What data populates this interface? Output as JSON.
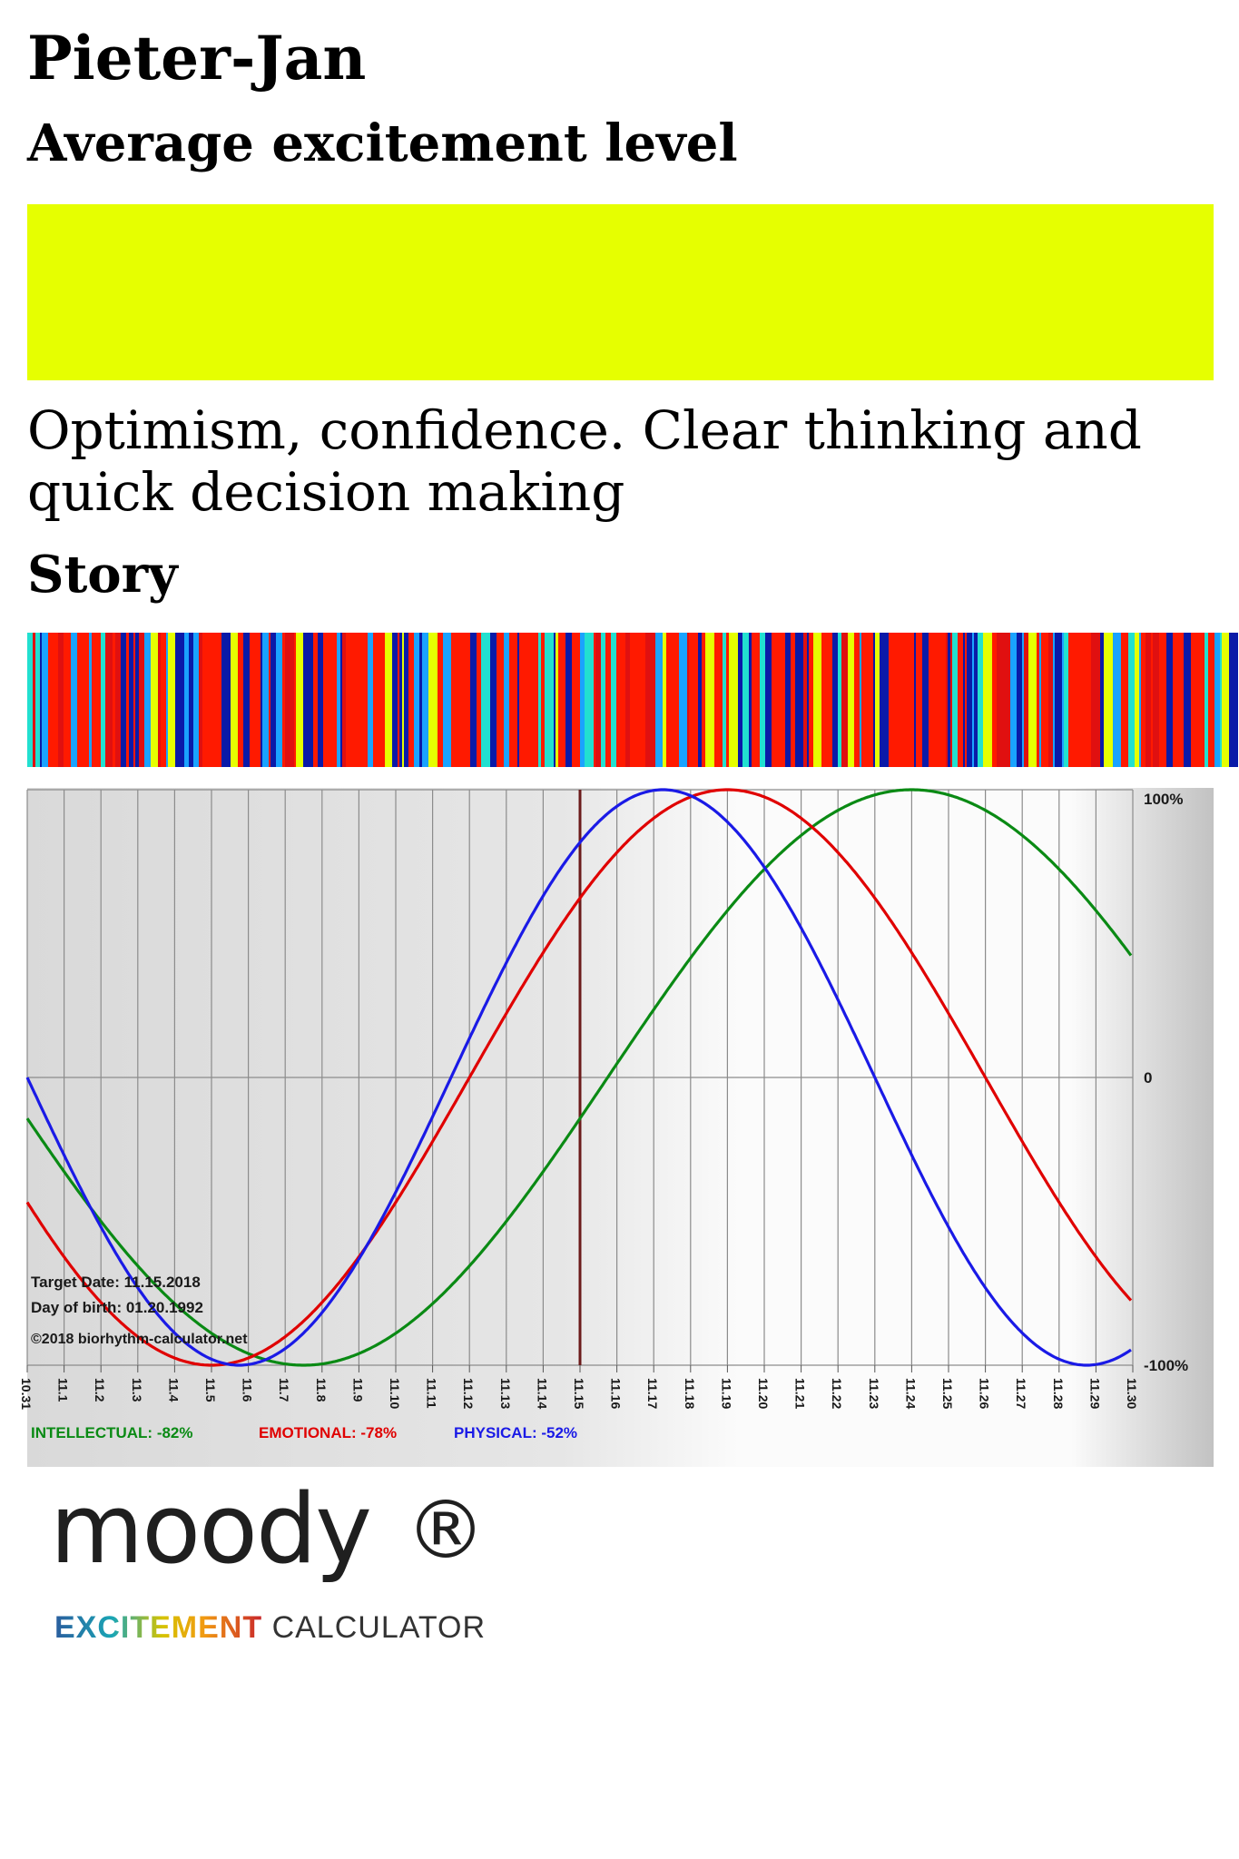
{
  "profile": {
    "name": "Pieter-Jan",
    "level_title": "Average excitement level",
    "level_color": "#e6ff00",
    "description": "Optimism, confidence. Clear thinking and quick decision making",
    "story_title": "Story",
    "story_palette": [
      "#ff1a00",
      "#ff1a00",
      "#e01010",
      "#0a1aa8",
      "#1aa3ff",
      "#22e0d0",
      "#e6ff00",
      "#ff1a00",
      "#0a1aa8",
      "#ff1a00"
    ]
  },
  "chart_data": {
    "type": "line",
    "x": [
      "10.31",
      "11.1",
      "11.2",
      "11.3",
      "11.4",
      "11.5",
      "11.6",
      "11.7",
      "11.8",
      "11.9",
      "11.10",
      "11.11",
      "11.12",
      "11.13",
      "11.14",
      "11.15",
      "11.16",
      "11.17",
      "11.18",
      "11.19",
      "11.20",
      "11.21",
      "11.22",
      "11.23",
      "11.24",
      "11.25",
      "11.26",
      "11.27",
      "11.28",
      "11.29",
      "11.30"
    ],
    "y_ticks": [
      "100%",
      "0",
      "-100%"
    ],
    "ylim": [
      -100,
      100
    ],
    "target_index": 15,
    "grid": true,
    "series": [
      {
        "name": "INTELLECTUAL",
        "color": "#0a8a14",
        "period": 33,
        "phase": 7.5,
        "legend": "INTELLECTUAL: -82%"
      },
      {
        "name": "EMOTIONAL",
        "color": "#e00000",
        "period": 28,
        "phase": 5.0,
        "legend": "EMOTIONAL: -78%"
      },
      {
        "name": "PHYSICAL",
        "color": "#1a1ae6",
        "period": 23,
        "phase": 5.75,
        "legend": "PHYSICAL: -52%"
      }
    ],
    "annotations": {
      "target_date": "Target Date: 11.15.2018",
      "birth_date": "Day of birth: 01.20.1992",
      "copyright": "©2018 biorhythm-calculator.net"
    }
  },
  "logo": {
    "word": "moody",
    "mark": "®",
    "accent": "EXCITEMENT",
    "sub": " CALCULATOR"
  }
}
